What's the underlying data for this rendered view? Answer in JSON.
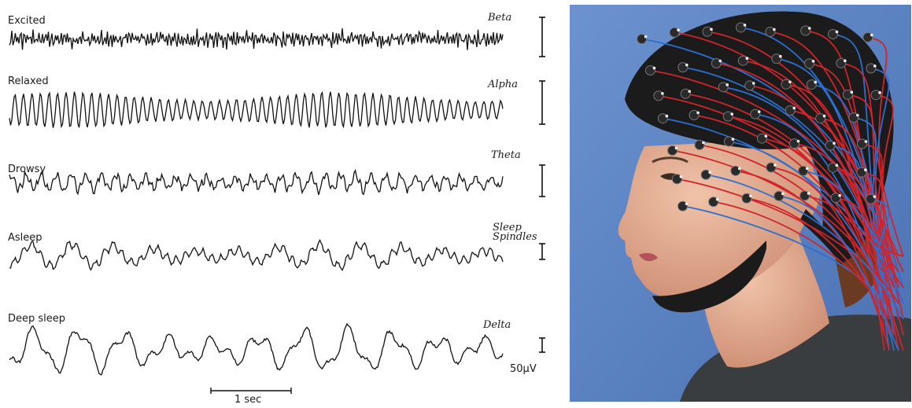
{
  "traces": [
    {
      "state": "Excited",
      "band": "Beta"
    },
    {
      "state": "Relaxed",
      "band": "Alpha"
    },
    {
      "state": "Drowsy",
      "band": "Theta"
    },
    {
      "state": "Asleep",
      "band": "Sleep Spindles"
    },
    {
      "state": "Deep sleep",
      "band": "Delta"
    }
  ],
  "scale": {
    "amplitude_label": "50µV",
    "time_label": "1 sec"
  },
  "photo": {
    "subject": "woman-wearing-eeg-electrode-cap",
    "colors": {
      "background": "#5d84c4",
      "cap": "#1b1b1b",
      "wires_red": "#d0242b",
      "wires_blue": "#2c6fd0",
      "skin": "#e7b59b"
    }
  }
}
